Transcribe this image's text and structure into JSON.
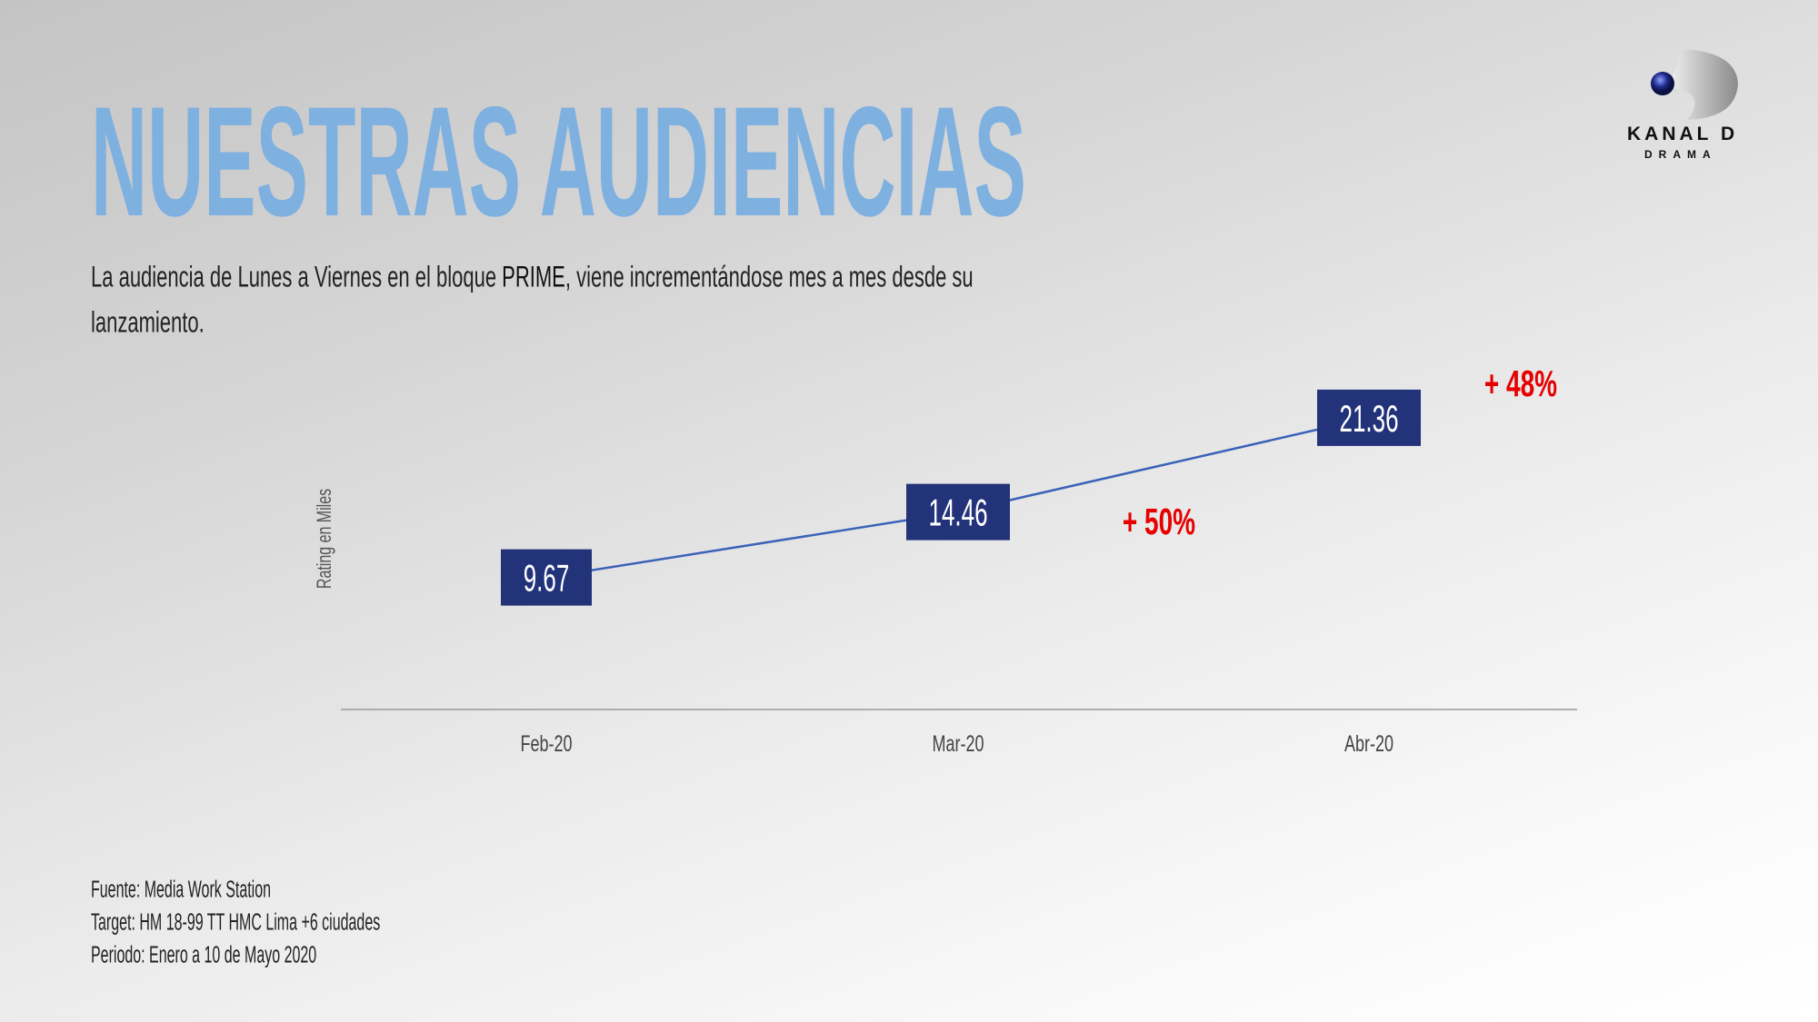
{
  "header": {
    "title": "NUESTRAS AUDIENCIAS",
    "subtitle_pre": "La audiencia de Lunes a Viernes en el bloque ",
    "subtitle_bold": "PRIME",
    "subtitle_post": ", viene incrementándose mes a mes desde su",
    "subtitle_line2": "lanzamiento."
  },
  "logo": {
    "name": "KANAL D",
    "sub": "DRAMA"
  },
  "chart_data": {
    "type": "line",
    "categories": [
      "Feb-20",
      "Mar-20",
      "Abr-20"
    ],
    "values": [
      9.67,
      14.46,
      21.36
    ],
    "data_labels": [
      "9.67",
      "14.46",
      "21.36"
    ],
    "ylabel": "Rating en Miles",
    "xlabel": "",
    "ylim": [
      0,
      30
    ],
    "grid": false,
    "annotations": [
      {
        "text": "+ 50%",
        "between": [
          "Mar-20",
          "Abr-20"
        ]
      },
      {
        "text": "+ 48%",
        "after": "Abr-20"
      }
    ],
    "colors": {
      "line": "#3a62b8",
      "box": "#22337a",
      "annotation": "#e60000",
      "axis": "#999999"
    }
  },
  "footer": [
    "Fuente:  Media Work Station",
    "Target: HM 18-99 TT HMC Lima +6 ciudades",
    "Periodo: Enero a 10 de Mayo 2020"
  ]
}
